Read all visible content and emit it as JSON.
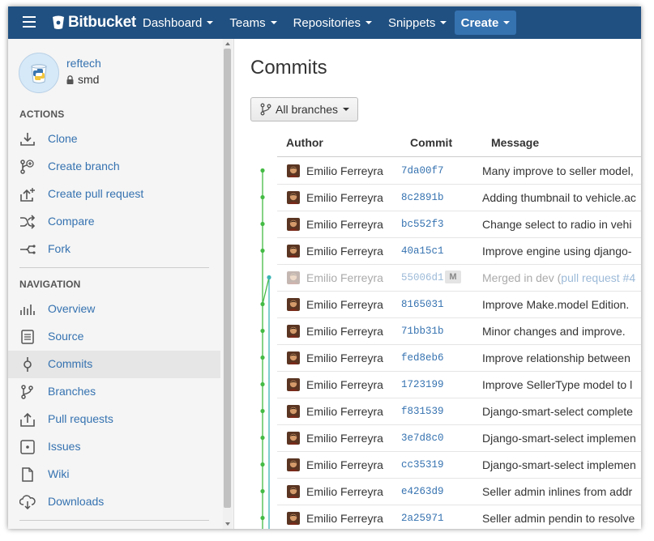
{
  "topbar": {
    "logo_text": "Bitbucket",
    "nav": [
      {
        "label": "Dashboard"
      },
      {
        "label": "Teams"
      },
      {
        "label": "Repositories"
      },
      {
        "label": "Snippets"
      }
    ],
    "create_label": "Create",
    "bg_color": "#205081"
  },
  "repo": {
    "owner": "reftech",
    "name": "smd"
  },
  "sidebar": {
    "actions_title": "ACTIONS",
    "actions": [
      {
        "label": "Clone",
        "icon": "download-icon"
      },
      {
        "label": "Create branch",
        "icon": "branch-add-icon"
      },
      {
        "label": "Create pull request",
        "icon": "pull-request-add-icon"
      },
      {
        "label": "Compare",
        "icon": "shuffle-icon"
      },
      {
        "label": "Fork",
        "icon": "fork-icon"
      }
    ],
    "navigation_title": "NAVIGATION",
    "navigation": [
      {
        "label": "Overview",
        "icon": "overview-icon"
      },
      {
        "label": "Source",
        "icon": "source-icon"
      },
      {
        "label": "Commits",
        "icon": "commit-icon",
        "active": true
      },
      {
        "label": "Branches",
        "icon": "branch-icon"
      },
      {
        "label": "Pull requests",
        "icon": "pull-request-icon"
      },
      {
        "label": "Issues",
        "icon": "issues-icon"
      },
      {
        "label": "Wiki",
        "icon": "wiki-icon"
      },
      {
        "label": "Downloads",
        "icon": "cloud-download-icon"
      }
    ]
  },
  "main": {
    "title": "Commits",
    "branch_filter": "All branches",
    "columns": [
      "Author",
      "Commit",
      "Message"
    ],
    "commits": [
      {
        "author": "Emilio Ferreyra",
        "hash": "7da00f7",
        "message": "Many improve to seller model,"
      },
      {
        "author": "Emilio Ferreyra",
        "hash": "8c2891b",
        "message": "Adding thumbnail to vehicle.ac"
      },
      {
        "author": "Emilio Ferreyra",
        "hash": "bc552f3",
        "message": "Change select to radio in vehi"
      },
      {
        "author": "Emilio Ferreyra",
        "hash": "40a15c1",
        "message": "Improve engine using django-"
      },
      {
        "author": "Emilio Ferreyra",
        "hash": "55006d1",
        "message": "Merged in dev (",
        "link": "pull request #4",
        "merge": true,
        "badge": "M"
      },
      {
        "author": "Emilio Ferreyra",
        "hash": "8165031",
        "message": "Improve Make.model Edition."
      },
      {
        "author": "Emilio Ferreyra",
        "hash": "71bb31b",
        "message": "Minor changes and improve."
      },
      {
        "author": "Emilio Ferreyra",
        "hash": "fed8eb6",
        "message": "Improve relationship between"
      },
      {
        "author": "Emilio Ferreyra",
        "hash": "1723199",
        "message": "Improve SellerType model to l"
      },
      {
        "author": "Emilio Ferreyra",
        "hash": "f831539",
        "message": "Django-smart-select complete"
      },
      {
        "author": "Emilio Ferreyra",
        "hash": "3e7d8c0",
        "message": "Django-smart-select implemen"
      },
      {
        "author": "Emilio Ferreyra",
        "hash": "cc35319",
        "message": "Django-smart-select implemen"
      },
      {
        "author": "Emilio Ferreyra",
        "hash": "e4263d9",
        "message": "Seller admin inlines from addr"
      },
      {
        "author": "Emilio Ferreyra",
        "hash": "2a25971",
        "message": "Seller admin pendin to resolve"
      }
    ]
  },
  "colors": {
    "link": "#3572b0",
    "graph_green": "#44bb44",
    "graph_teal": "#3bb4b4"
  }
}
